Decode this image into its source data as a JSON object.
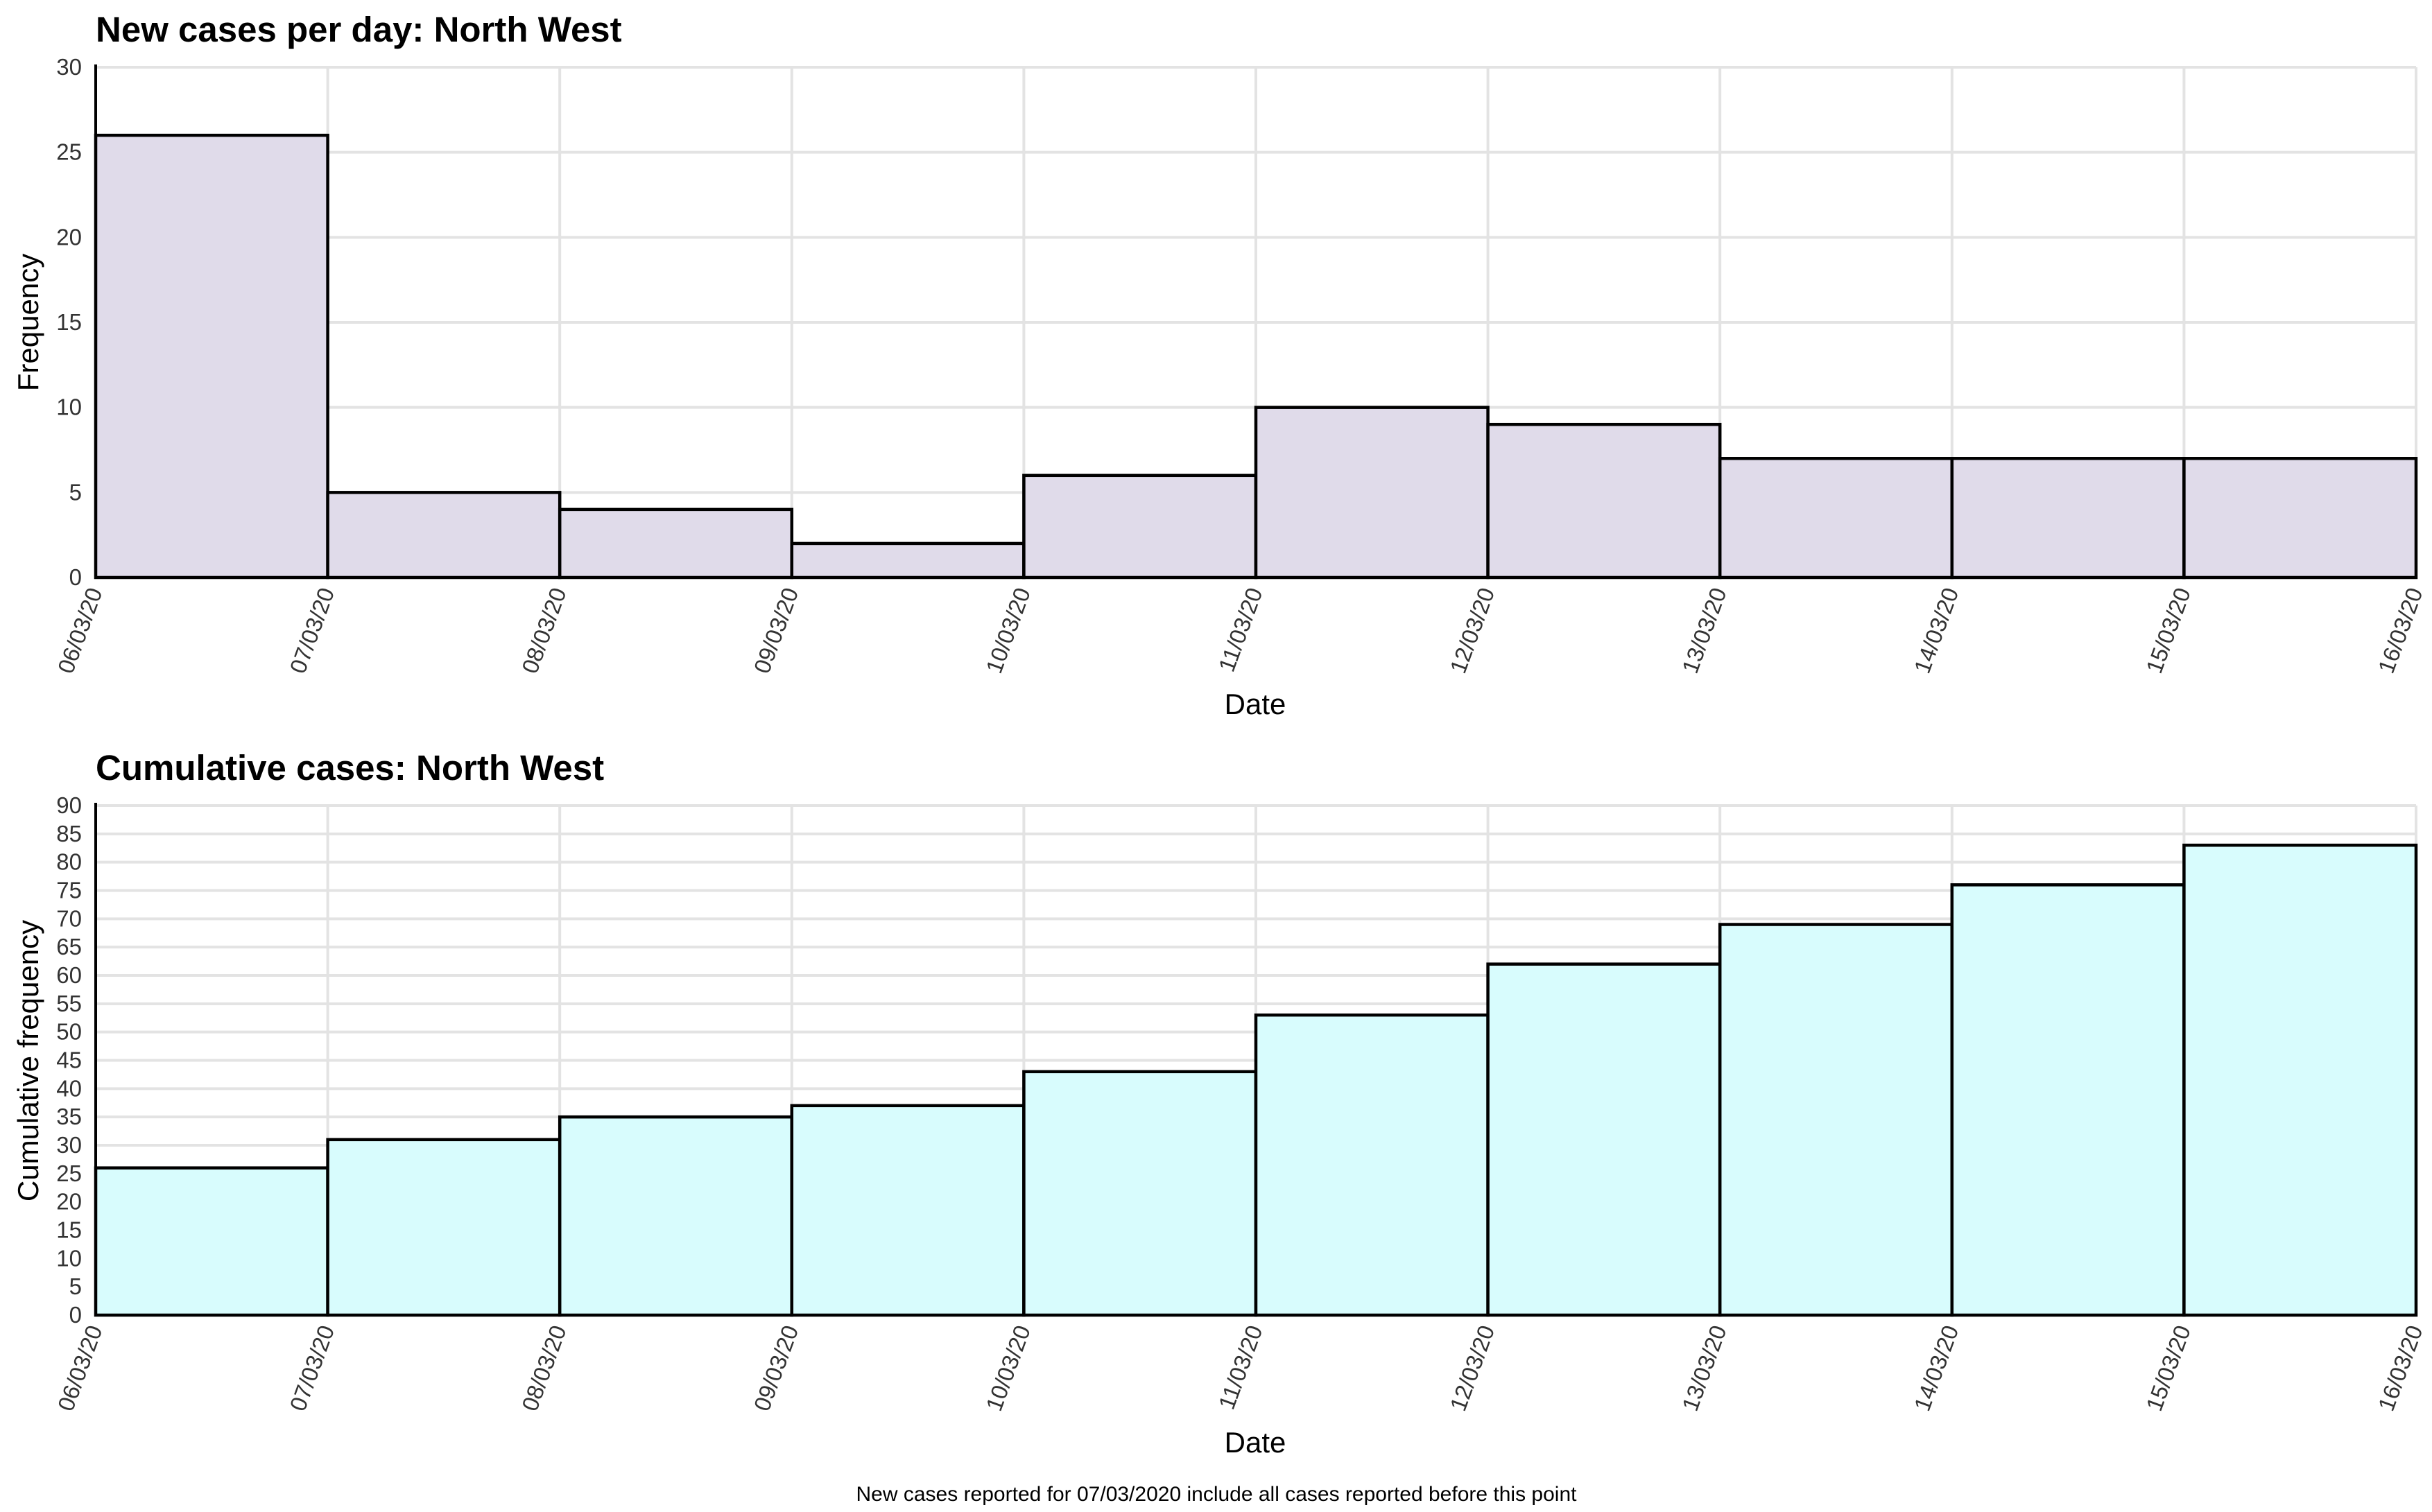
{
  "caption": "New cases reported for 07/03/2020 include all cases reported before this point",
  "chart_data": [
    {
      "type": "bar",
      "title": "New cases per day: North West",
      "xlabel": "Date",
      "ylabel": "Frequency",
      "x_ticks": [
        "06/03/20",
        "07/03/20",
        "08/03/20",
        "09/03/20",
        "10/03/20",
        "11/03/20",
        "12/03/20",
        "13/03/20",
        "14/03/20",
        "15/03/20",
        "16/03/20"
      ],
      "categories": [
        "06/03/20",
        "07/03/20",
        "08/03/20",
        "09/03/20",
        "10/03/20",
        "11/03/20",
        "12/03/20",
        "13/03/20",
        "14/03/20",
        "15/03/20"
      ],
      "values": [
        26,
        5,
        4,
        2,
        6,
        10,
        9,
        7,
        7,
        7
      ],
      "ylim": [
        0,
        30
      ],
      "y_ticks": [
        0,
        5,
        10,
        15,
        20,
        25,
        30
      ],
      "grid": true,
      "bar_color": "#e0dbea"
    },
    {
      "type": "bar",
      "title": "Cumulative cases: North West",
      "xlabel": "Date",
      "ylabel": "Cumulative frequency",
      "x_ticks": [
        "06/03/20",
        "07/03/20",
        "08/03/20",
        "09/03/20",
        "10/03/20",
        "11/03/20",
        "12/03/20",
        "13/03/20",
        "14/03/20",
        "15/03/20",
        "16/03/20"
      ],
      "categories": [
        "06/03/20",
        "07/03/20",
        "08/03/20",
        "09/03/20",
        "10/03/20",
        "11/03/20",
        "12/03/20",
        "13/03/20",
        "14/03/20",
        "15/03/20"
      ],
      "values": [
        26,
        31,
        35,
        37,
        43,
        53,
        62,
        69,
        76,
        83
      ],
      "ylim": [
        0,
        90
      ],
      "y_ticks": [
        0,
        5,
        10,
        15,
        20,
        25,
        30,
        35,
        40,
        45,
        50,
        55,
        60,
        65,
        70,
        75,
        80,
        85,
        90
      ],
      "grid": true,
      "bar_color": "#d8fcfd"
    }
  ]
}
